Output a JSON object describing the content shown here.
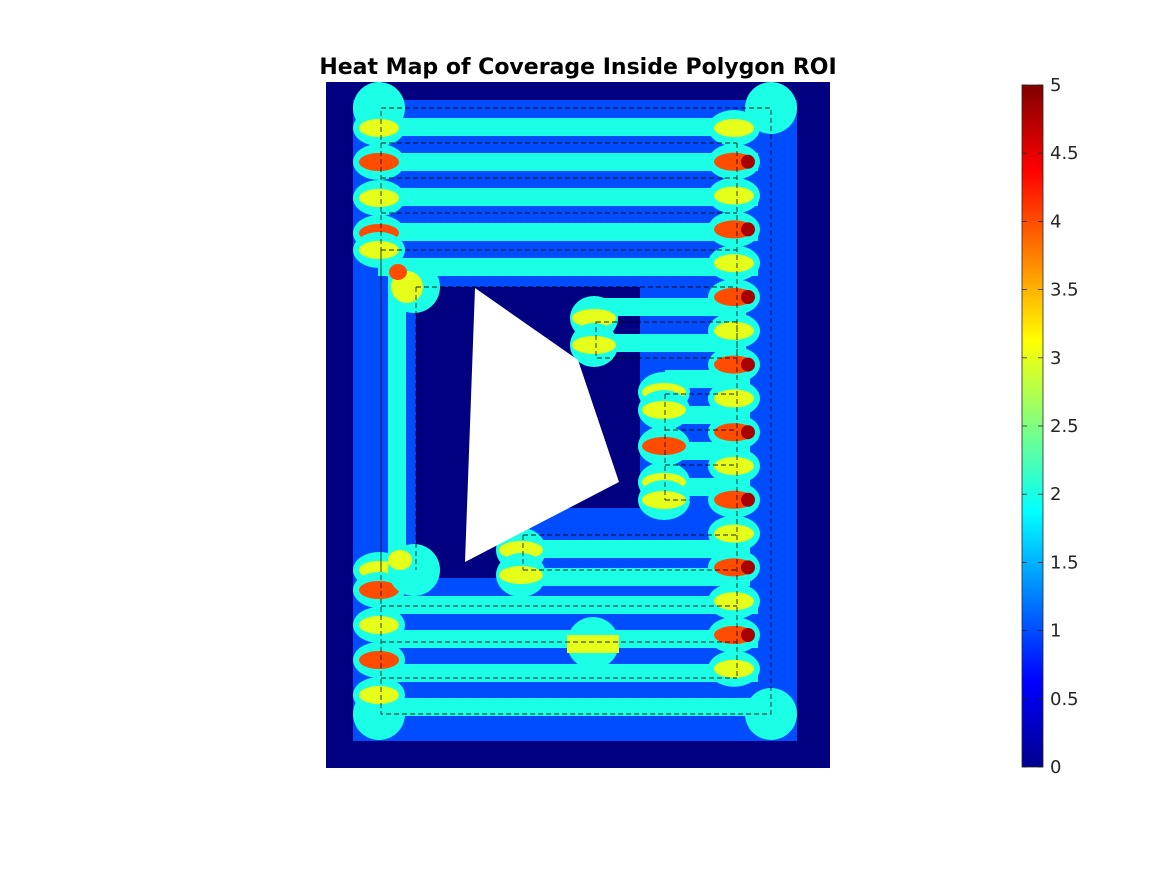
{
  "chart_data": {
    "type": "heatmap",
    "title": "Heat Map of Coverage Inside Polygon ROI",
    "xlabel": "",
    "ylabel": "",
    "axes_visible": false,
    "colormap": "jet",
    "colorbar": {
      "location": "right",
      "range": [
        0,
        5
      ],
      "ticks": [
        0,
        0.5,
        1,
        1.5,
        2,
        2.5,
        3,
        3.5,
        4,
        4.5,
        5
      ],
      "tick_labels": [
        "0",
        "0.5",
        "1",
        "1.5",
        "2",
        "2.5",
        "3",
        "3.5",
        "4",
        "4.5",
        "5"
      ]
    },
    "regions": [
      {
        "name": "roi-background",
        "value": 0
      },
      {
        "name": "inner-band",
        "value": 1
      },
      {
        "name": "sweep-stripes",
        "value": 2
      },
      {
        "name": "overlap-lobes",
        "value": 3
      },
      {
        "name": "turn-overlaps",
        "value": 4
      },
      {
        "name": "triple-corners",
        "value": 4.8
      },
      {
        "name": "obstacle-excluded",
        "value": null
      }
    ],
    "path_overlay": {
      "style": "dashed",
      "color": "#000000"
    }
  }
}
